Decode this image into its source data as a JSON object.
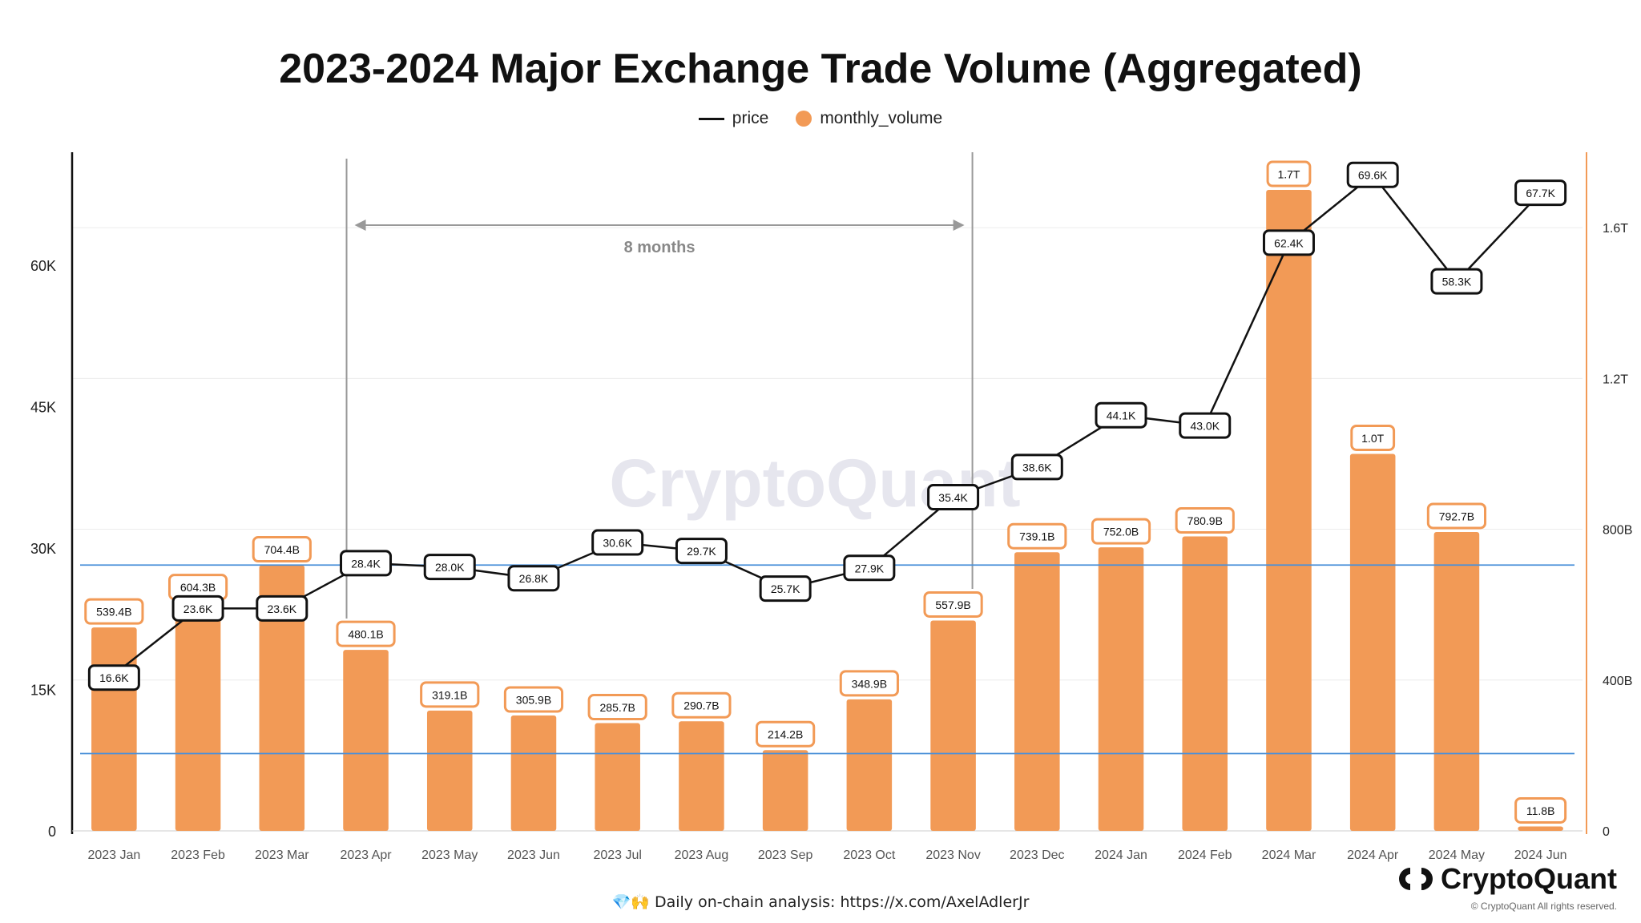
{
  "chart_data": {
    "type": "bar",
    "title": "2023-2024 Major Exchange Trade Volume (Aggregated)",
    "categories": [
      "2023 Jan",
      "2023 Feb",
      "2023 Mar",
      "2023 Apr",
      "2023 May",
      "2023 Jun",
      "2023 Jul",
      "2023 Aug",
      "2023 Sep",
      "2023 Oct",
      "2023 Nov",
      "2023 Dec",
      "2024 Jan",
      "2024 Feb",
      "2024 Mar",
      "2024 Apr",
      "2024 May",
      "2024 Jun"
    ],
    "series": [
      {
        "name": "monthly_volume",
        "type": "bar",
        "axis": "right",
        "color": "#f29a56",
        "values": [
          539.4,
          604.3,
          704.4,
          480.1,
          319.1,
          305.9,
          285.7,
          290.7,
          214.2,
          348.9,
          557.9,
          739.1,
          752.0,
          780.9,
          1700,
          1000,
          792.7,
          11.8
        ],
        "labels": [
          "539.4B",
          "604.3B",
          "704.4B",
          "480.1B",
          "319.1B",
          "305.9B",
          "285.7B",
          "290.7B",
          "214.2B",
          "348.9B",
          "557.9B",
          "739.1B",
          "752.0B",
          "780.9B",
          "1.7T",
          "1.0T",
          "792.7B",
          "11.8B"
        ]
      },
      {
        "name": "price",
        "type": "line",
        "axis": "left",
        "color": "#111111",
        "values": [
          16.6,
          23.6,
          23.6,
          28.4,
          28.0,
          26.8,
          30.6,
          29.7,
          25.7,
          27.9,
          35.4,
          38.6,
          44.1,
          43.0,
          62.4,
          69.6,
          58.3,
          67.7
        ],
        "labels": [
          "16.6K",
          "23.6K",
          "23.6K",
          "28.4K",
          "28.0K",
          "26.8K",
          "30.6K",
          "29.7K",
          "25.7K",
          "27.9K",
          "35.4K",
          "38.6K",
          "44.1K",
          "43.0K",
          "62.4K",
          "69.6K",
          "58.3K",
          "67.7K"
        ],
        "feb_label": "604.3B"
      }
    ],
    "left_axis": {
      "ylim": [
        0,
        72
      ],
      "ticks": [
        0,
        15,
        30,
        45,
        60
      ],
      "tick_labels": [
        "0",
        "15K",
        "30K",
        "45K",
        "60K"
      ]
    },
    "right_axis": {
      "ylim": [
        0,
        1800
      ],
      "ticks": [
        0,
        400,
        800,
        1200,
        1600
      ],
      "tick_labels": [
        "0",
        "400B",
        "800B",
        "1.2T",
        "1.6T"
      ],
      "color": "#f29a56"
    },
    "horizontal_lines": [
      {
        "axis": "left",
        "value": 28.2,
        "color": "#4a90d9"
      },
      {
        "axis": "left",
        "value": 8.2,
        "color": "#4a90d9"
      }
    ],
    "annotation": {
      "label": "8 months",
      "from_category": "2023 Apr",
      "to_category": "2023 Nov"
    },
    "legend": [
      "price",
      "monthly_volume"
    ],
    "legend_position": "top-center",
    "grid": true
  },
  "legend": {
    "price": "price",
    "volume": "monthly_volume"
  },
  "watermark": "CryptoQuant",
  "footer": {
    "text": "💎🙌 Daily on-chain analysis: https://x.com/AxelAdlerJr"
  },
  "brand": {
    "name": "CryptoQuant",
    "copyright": "© CryptoQuant All rights reserved."
  }
}
